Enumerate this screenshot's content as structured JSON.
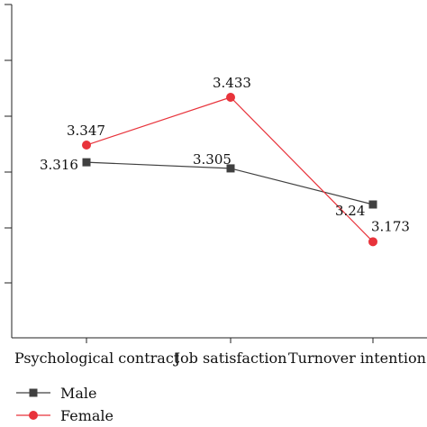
{
  "chart_data": {
    "type": "line",
    "categories": [
      "Psychological contract",
      "Job satisfaction",
      "Turnover intention"
    ],
    "series": [
      {
        "name": "Male",
        "values": [
          3.316,
          3.305,
          3.24
        ],
        "color": "#404040",
        "marker": "square"
      },
      {
        "name": "Female",
        "values": [
          3.347,
          3.433,
          3.173
        ],
        "color": "#e8333b",
        "marker": "circle"
      }
    ],
    "data_labels": {
      "Male": [
        "3.316",
        "3.305",
        "3.24"
      ],
      "Female": [
        "3.347",
        "3.433",
        "3.173"
      ]
    },
    "ylim": [
      3.0,
      3.6
    ],
    "title": "",
    "xlabel": "",
    "ylabel": "",
    "grid": false,
    "legend_position": "bottom-left"
  }
}
